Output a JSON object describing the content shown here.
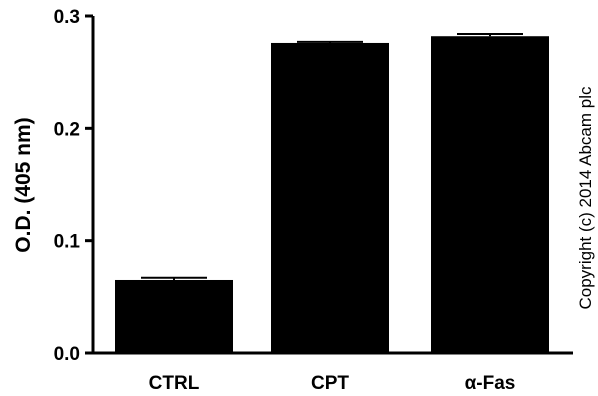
{
  "chart_data": {
    "type": "bar",
    "categories": [
      "CTRL",
      "CPT",
      "α-Fas"
    ],
    "values": [
      0.065,
      0.276,
      0.282
    ],
    "errors": [
      0.002,
      0.001,
      0.002
    ],
    "title": "",
    "xlabel": "",
    "ylabel": "O.D. (405 nm)",
    "ylim": [
      0,
      0.3
    ],
    "yticks": [
      "0.0",
      "0.1",
      "0.2",
      "0.3"
    ],
    "grid": false,
    "bar_color": "#000000"
  },
  "watermark": "Copyright (c) 2014 Abcam plc"
}
